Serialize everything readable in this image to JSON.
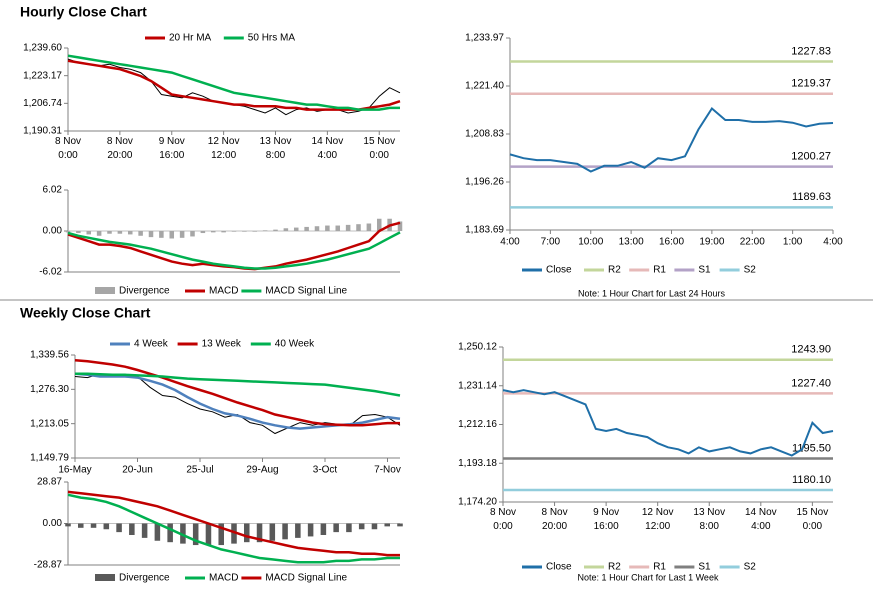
{
  "section_titles": [
    "Hourly Close Chart",
    "Weekly Close Chart"
  ],
  "chart_data": [
    {
      "type": "line",
      "categories": [
        "8 Nov 0:00",
        null,
        null,
        null,
        null,
        "8 Nov 20:00",
        null,
        null,
        null,
        null,
        "9 Nov 16:00",
        null,
        null,
        null,
        null,
        "12 Nov 12:00",
        null,
        null,
        null,
        null,
        "13 Nov 8:00",
        null,
        null,
        null,
        null,
        "14 Nov 4:00",
        null,
        null,
        null,
        null,
        "15 Nov 0:00",
        null,
        null
      ],
      "values": [
        1233,
        1231,
        1230,
        1229,
        1230,
        1228,
        1227,
        1225,
        1220,
        1212,
        1211,
        1210,
        1213,
        1211,
        1208,
        1207,
        1206,
        1205,
        1203,
        1201,
        1204,
        1200,
        1203,
        1204,
        1202,
        1203,
        1203,
        1201,
        1202,
        1204,
        1211,
        1216,
        1213
      ],
      "color": "#000000",
      "series": [
        {
          "name": "20 Hr MA",
          "color": "#c00000",
          "values": [
            1232,
            1231,
            1230,
            1229,
            1228,
            1227,
            1225,
            1223,
            1220,
            1216,
            1212,
            1211,
            1210,
            1209,
            1208,
            1207,
            1206,
            1206,
            1205,
            1205,
            1205,
            1204,
            1204,
            1203,
            1203,
            1203,
            1203,
            1203,
            1203,
            1204,
            1205,
            1206,
            1208
          ]
        },
        {
          "name": "50 Hrs MA",
          "color": "#00b050",
          "values": [
            1235,
            1234,
            1233,
            1232,
            1231,
            1230,
            1229,
            1228,
            1227,
            1226,
            1225,
            1223,
            1221,
            1219,
            1217,
            1215,
            1213,
            1212,
            1211,
            1210,
            1209,
            1208,
            1207,
            1206,
            1206,
            1205,
            1204,
            1204,
            1203,
            1203,
            1203,
            1204,
            1204
          ]
        }
      ],
      "ylim": [
        1190.31,
        1239.6
      ],
      "yticks": [
        {
          "value": 1239.6,
          "label": "1,239.60"
        },
        {
          "value": 1223.17,
          "label": "1,223.17"
        },
        {
          "value": 1206.74,
          "label": "1,206.74"
        },
        {
          "value": 1190.31,
          "label": "1,190.31"
        }
      ]
    },
    {
      "type": "bar",
      "series": [
        {
          "name": "Divergence",
          "color": "#a6a6a6",
          "kind": "bar",
          "values": [
            -0.2,
            -0.3,
            -0.5,
            -0.7,
            -0.4,
            -0.4,
            -0.5,
            -0.7,
            -0.9,
            -1,
            -1.1,
            -1,
            -0.8,
            -0.3,
            -0.2,
            -0.2,
            -0.1,
            -0.1,
            -0.1,
            0.1,
            0.2,
            0.4,
            0.5,
            0.6,
            0.7,
            0.8,
            0.8,
            0.9,
            1,
            1.1,
            1.8,
            1.8,
            1.4
          ]
        },
        {
          "name": "MACD",
          "color": "#c00000",
          "kind": "line",
          "values": [
            -0.5,
            -1,
            -1.5,
            -2,
            -2,
            -2.2,
            -2.5,
            -3,
            -3.5,
            -4,
            -4.5,
            -4.8,
            -5,
            -4.8,
            -5,
            -5.2,
            -5.3,
            -5.5,
            -5.6,
            -5.4,
            -5.2,
            -4.8,
            -4.5,
            -4.2,
            -3.8,
            -3.4,
            -3,
            -2.5,
            -2,
            -1.5,
            0,
            0.8,
            1.2
          ]
        },
        {
          "name": "MACD Signal Line",
          "color": "#00b050",
          "kind": "line",
          "values": [
            -0.3,
            -0.7,
            -1,
            -1.3,
            -1.6,
            -1.8,
            -2,
            -2.3,
            -2.6,
            -3,
            -3.4,
            -3.8,
            -4.2,
            -4.5,
            -4.8,
            -5,
            -5.2,
            -5.4,
            -5.5,
            -5.5,
            -5.4,
            -5.2,
            -5,
            -4.8,
            -4.5,
            -4.2,
            -3.8,
            -3.4,
            -3,
            -2.6,
            -1.8,
            -1,
            -0.2
          ]
        }
      ],
      "ylim": [
        -6.02,
        6.02
      ],
      "yticks": [
        6.02,
        {
          "value": 0,
          "label": "0.00"
        },
        -6.02
      ]
    },
    {
      "type": "line",
      "categories": [
        "4:00",
        null,
        null,
        "7:00",
        null,
        null,
        "10:00",
        null,
        null,
        "13:00",
        null,
        null,
        "16:00",
        null,
        null,
        "19:00",
        null,
        null,
        "22:00",
        null,
        null,
        "1:00",
        null,
        null,
        "4:00"
      ],
      "series": [
        {
          "name": "Close",
          "color": "#1f6fa8",
          "values": [
            1203.5,
            1202.5,
            1202,
            1202,
            1201.5,
            1201,
            1199,
            1200.5,
            1200.5,
            1201.5,
            1200,
            1202.5,
            1202,
            1203,
            1210,
            1215.5,
            1212.5,
            1212.5,
            1212,
            1212,
            1212.2,
            1211.8,
            1210.8,
            1211.5,
            1211.7
          ]
        }
      ],
      "levels": [
        {
          "name": "R2",
          "color": "#c3d69b",
          "value": 1227.83
        },
        {
          "name": "R1",
          "color": "#e6b9b8",
          "value": 1219.37
        },
        {
          "name": "S1",
          "color": "#b3a2c7",
          "value": 1200.27
        },
        {
          "name": "S2",
          "color": "#92cddc",
          "value": 1189.63
        }
      ],
      "ylim": [
        1183.69,
        1233.97
      ],
      "yticks": [
        {
          "value": 1233.97,
          "label": "1,233.97"
        },
        {
          "value": 1221.4,
          "label": "1,221.40"
        },
        {
          "value": 1208.83,
          "label": "1,208.83"
        },
        {
          "value": 1196.26,
          "label": "1,196.26"
        },
        {
          "value": 1183.69,
          "label": "1,183.69"
        }
      ],
      "note": "Note: 1 Hour Chart for Last 24 Hours"
    },
    {
      "type": "line",
      "categories": [
        "16-May",
        null,
        null,
        null,
        null,
        "20-Jun",
        null,
        null,
        null,
        null,
        "25-Jul",
        null,
        null,
        null,
        null,
        "29-Aug",
        null,
        null,
        null,
        null,
        "3-Oct",
        null,
        null,
        null,
        null,
        "7-Nov",
        null
      ],
      "values": [
        1300,
        1298,
        1305,
        1300,
        1302,
        1300,
        1280,
        1265,
        1262,
        1250,
        1240,
        1235,
        1225,
        1230,
        1215,
        1210,
        1195,
        1205,
        1215,
        1210,
        1215,
        1212,
        1210,
        1228,
        1230,
        1225,
        1210
      ],
      "color": "#000000",
      "series": [
        {
          "name": "4 Week",
          "color": "#4f81bd",
          "values": [
            1305,
            1303,
            1300,
            1300,
            1300,
            1298,
            1292,
            1285,
            1275,
            1262,
            1250,
            1240,
            1232,
            1228,
            1222,
            1215,
            1210,
            1206,
            1204,
            1206,
            1208,
            1210,
            1212,
            1215,
            1220,
            1225,
            1222
          ]
        },
        {
          "name": "13 Week",
          "color": "#c00000",
          "values": [
            1330,
            1328,
            1325,
            1322,
            1318,
            1312,
            1305,
            1298,
            1290,
            1282,
            1275,
            1268,
            1260,
            1252,
            1245,
            1238,
            1230,
            1225,
            1220,
            1215,
            1212,
            1211,
            1210,
            1210,
            1212,
            1214,
            1214
          ]
        },
        {
          "name": "40 Week",
          "color": "#00b050",
          "values": [
            1305,
            1305,
            1304,
            1303,
            1303,
            1302,
            1301,
            1300,
            1298,
            1296,
            1295,
            1294,
            1293,
            1292,
            1291,
            1290,
            1289,
            1288,
            1287,
            1286,
            1285,
            1282,
            1279,
            1276,
            1273,
            1269,
            1265
          ]
        }
      ],
      "ylim": [
        1149.79,
        1339.56
      ],
      "yticks": [
        {
          "value": 1339.56,
          "label": "1,339.56"
        },
        {
          "value": 1276.3,
          "label": "1,276.30"
        },
        {
          "value": 1213.05,
          "label": "1,213.05"
        },
        {
          "value": 1149.79,
          "label": "1,149.79"
        }
      ]
    },
    {
      "type": "bar",
      "series": [
        {
          "name": "Divergence",
          "color": "#595959",
          "kind": "bar",
          "values": [
            -2,
            -3,
            -3,
            -4,
            -6,
            -8,
            -10,
            -12,
            -13,
            -14,
            -15,
            -15,
            -15,
            -14,
            -13,
            -13,
            -12,
            -11,
            -10,
            -9,
            -8,
            -6,
            -6,
            -4,
            -4,
            -2,
            -2
          ]
        },
        {
          "name": "MACD",
          "color": "#00b050",
          "kind": "line",
          "values": [
            20,
            18,
            17,
            15,
            12,
            8,
            4,
            0,
            -4,
            -8,
            -12,
            -15,
            -18,
            -20,
            -22,
            -24,
            -25,
            -26,
            -27,
            -27,
            -27,
            -26,
            -26,
            -25,
            -25,
            -24,
            -24
          ]
        },
        {
          "name": "MACD Signal Line",
          "color": "#c00000",
          "kind": "line",
          "values": [
            22,
            21,
            20,
            19,
            18,
            16,
            14,
            12,
            9,
            6,
            3,
            0,
            -3,
            -6,
            -9,
            -11,
            -13,
            -15,
            -17,
            -18,
            -19,
            -20,
            -20,
            -21,
            -21,
            -22,
            -22
          ]
        }
      ],
      "ylim": [
        -28.87,
        28.87
      ],
      "yticks": [
        28.87,
        {
          "value": 0,
          "label": "0.00"
        },
        -28.87
      ]
    },
    {
      "type": "line",
      "categories": [
        "8 Nov 0:00",
        null,
        null,
        null,
        null,
        "8 Nov 20:00",
        null,
        null,
        null,
        null,
        "9 Nov 16:00",
        null,
        null,
        null,
        null,
        "12 Nov 12:00",
        null,
        null,
        null,
        null,
        "13 Nov 8:00",
        null,
        null,
        null,
        null,
        "14 Nov 4:00",
        null,
        null,
        null,
        null,
        "15 Nov 0:00",
        null,
        null
      ],
      "series": [
        {
          "name": "Close",
          "color": "#1f6fa8",
          "values": [
            1229,
            1228,
            1229,
            1228,
            1227,
            1228,
            1226,
            1224,
            1222,
            1210,
            1209,
            1210,
            1208,
            1207,
            1206,
            1203,
            1201,
            1200,
            1198,
            1201,
            1199,
            1200,
            1201,
            1199,
            1198,
            1200,
            1201,
            1199,
            1197,
            1200,
            1213,
            1208,
            1209
          ]
        }
      ],
      "levels": [
        {
          "name": "R2",
          "color": "#c3d69b",
          "value": 1243.9,
          "value_label": "1243.90"
        },
        {
          "name": "R1",
          "color": "#e6b9b8",
          "value": 1227.4,
          "value_label": "1227.40"
        },
        {
          "name": "S1",
          "color": "#7f7f7f",
          "value": 1195.5,
          "value_label": "1195.50"
        },
        {
          "name": "S2",
          "color": "#92cddc",
          "value": 1180.1,
          "value_label": "1180.10"
        }
      ],
      "ylim": [
        1174.2,
        1250.12
      ],
      "yticks": [
        {
          "value": 1250.12,
          "label": "1,250.12"
        },
        {
          "value": 1231.14,
          "label": "1,231.14"
        },
        {
          "value": 1212.16,
          "label": "1,212.16"
        },
        {
          "value": 1193.18,
          "label": "1,193.18"
        },
        {
          "value": 1174.2,
          "label": "1,174.20"
        }
      ],
      "note": "Note: 1 Hour Chart for Last 1 Week"
    }
  ]
}
